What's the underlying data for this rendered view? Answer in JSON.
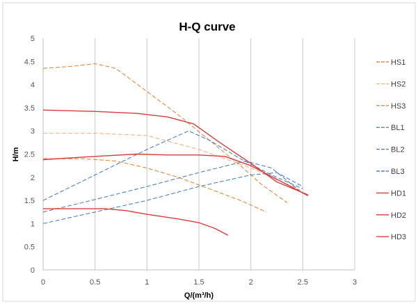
{
  "chart_data": {
    "type": "line",
    "title": "H-Q  curve",
    "xlabel": "Q/(m³/h)",
    "ylabel": "H/m",
    "xlim": [
      0,
      3
    ],
    "ylim": [
      0,
      5
    ],
    "x_ticks": [
      "0",
      "0.5",
      "1",
      "1.5",
      "2",
      "2.5",
      "3"
    ],
    "y_ticks": [
      "0",
      "0.5",
      "1",
      "1.5",
      "2",
      "2.5",
      "3",
      "3.5",
      "4",
      "4.5",
      "5"
    ],
    "grid": "vertical",
    "legend_position": "right",
    "series": [
      {
        "name": "HS1",
        "color": "#E08A3C",
        "dash": "dashed",
        "x": [
          0,
          0.3,
          0.5,
          0.7,
          1.0,
          1.3,
          1.6,
          1.9,
          2.1,
          2.35
        ],
        "y": [
          4.35,
          4.4,
          4.45,
          4.35,
          3.85,
          3.35,
          2.8,
          2.25,
          1.85,
          1.45
        ]
      },
      {
        "name": "HS2",
        "color": "#F4B183",
        "dash": "dashed",
        "x": [
          0,
          0.5,
          1.0,
          1.5,
          2.0,
          2.5
        ],
        "y": [
          2.95,
          2.95,
          2.9,
          2.6,
          2.2,
          1.7
        ]
      },
      {
        "name": "HS3",
        "color": "#E08A3C",
        "dash": "dashed",
        "x": [
          0,
          0.4,
          0.7,
          1.0,
          1.3,
          1.6,
          1.9,
          2.15
        ],
        "y": [
          2.4,
          2.4,
          2.35,
          2.2,
          2.0,
          1.75,
          1.5,
          1.25
        ]
      },
      {
        "name": "BL1",
        "color": "#4F81BD",
        "dash": "dashed",
        "x": [
          0,
          0.5,
          1.0,
          1.4,
          1.6,
          1.9,
          2.2,
          2.5
        ],
        "y": [
          1.5,
          2.05,
          2.6,
          3.0,
          2.8,
          2.4,
          2.05,
          1.75
        ]
      },
      {
        "name": "BL2",
        "color": "#4F81BD",
        "dash": "dashed",
        "x": [
          0,
          0.5,
          1.0,
          1.5,
          1.95,
          2.2,
          2.5
        ],
        "y": [
          1.25,
          1.52,
          1.8,
          2.1,
          2.35,
          2.2,
          1.65
        ]
      },
      {
        "name": "BL3",
        "color": "#4F81BD",
        "dash": "dashed",
        "x": [
          0,
          0.5,
          1.0,
          1.5,
          2.0,
          2.25,
          2.5
        ],
        "y": [
          1.0,
          1.25,
          1.5,
          1.8,
          2.05,
          2.1,
          1.8
        ]
      },
      {
        "name": "HD1",
        "color": "#D93B3B",
        "dash": "solid",
        "x": [
          0,
          0.5,
          0.9,
          1.2,
          1.45,
          1.7,
          2.0,
          2.25,
          2.55
        ],
        "y": [
          3.45,
          3.42,
          3.38,
          3.3,
          3.15,
          2.75,
          2.3,
          1.9,
          1.62
        ]
      },
      {
        "name": "HD2",
        "color": "#D93B3B",
        "dash": "solid",
        "x": [
          0,
          0.5,
          0.9,
          1.2,
          1.5,
          1.75,
          2.0,
          2.3,
          2.55
        ],
        "y": [
          2.38,
          2.45,
          2.5,
          2.48,
          2.48,
          2.45,
          2.25,
          1.9,
          1.6
        ]
      },
      {
        "name": "HD3",
        "color": "#D93B3B",
        "dash": "solid",
        "x": [
          0,
          0.6,
          0.8,
          1.0,
          1.3,
          1.5,
          1.65,
          1.78
        ],
        "y": [
          1.32,
          1.32,
          1.28,
          1.2,
          1.1,
          1.02,
          0.9,
          0.75
        ]
      }
    ]
  }
}
